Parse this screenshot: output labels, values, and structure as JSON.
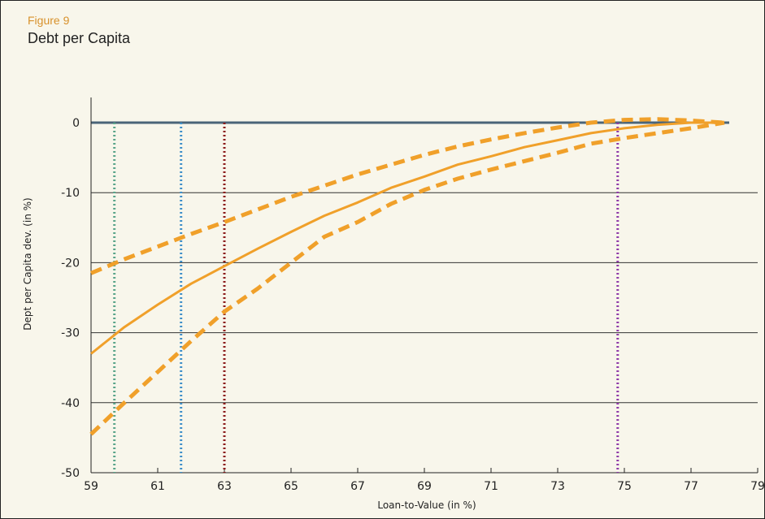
{
  "figure_label": "Figure 9",
  "figure_title": "Debt per Capita",
  "colors": {
    "background": "#f8f6eb",
    "series": "#f0a02a",
    "zero_line": "#4a6478",
    "grid": "#333333",
    "ref_green": "#5aa58a",
    "ref_blue": "#3f8fc9",
    "ref_darkred": "#8b1a1a",
    "ref_purple": "#8e3aa8"
  },
  "chart_data": {
    "type": "line",
    "title": "",
    "xlabel": "Loan-to-Value (in %)",
    "ylabel": "Dept per Capita dev. (in %)",
    "xlim": [
      59,
      79
    ],
    "ylim": [
      -50,
      2
    ],
    "xticks": [
      59,
      61,
      63,
      65,
      67,
      69,
      71,
      73,
      75,
      77,
      79
    ],
    "yticks": [
      0,
      -10,
      -20,
      -30,
      -40,
      -50
    ],
    "grid": "horizontal",
    "legend": "none",
    "series": [
      {
        "style": "solid",
        "x": [
          59,
          60,
          61,
          62,
          63,
          64,
          65,
          66,
          67,
          68,
          69,
          70,
          71,
          72,
          73,
          74,
          75,
          76,
          77,
          78
        ],
        "y": [
          -33,
          -29.2,
          -26,
          -23,
          -20.5,
          -18,
          -15.6,
          -13.3,
          -11.4,
          -9.3,
          -7.7,
          -6,
          -4.8,
          -3.5,
          -2.5,
          -1.5,
          -0.8,
          -0.3,
          0,
          0
        ]
      },
      {
        "style": "dashed",
        "x": [
          59,
          60,
          61,
          62,
          63,
          64,
          65,
          66,
          67,
          68,
          69,
          70,
          71,
          72,
          73,
          74,
          75,
          76,
          77,
          78
        ],
        "y": [
          -21.5,
          -19.5,
          -17.7,
          -15.9,
          -14.2,
          -12.4,
          -10.6,
          -9,
          -7.4,
          -6,
          -4.6,
          -3.4,
          -2.4,
          -1.5,
          -0.7,
          0,
          0.4,
          0.5,
          0.3,
          0
        ]
      },
      {
        "style": "dashed",
        "x": [
          59,
          60,
          61,
          62,
          63,
          64,
          65,
          66,
          67,
          68,
          69,
          70,
          71,
          72,
          73,
          74,
          75,
          76,
          77,
          78
        ],
        "y": [
          -44.5,
          -40,
          -35.6,
          -31.2,
          -27,
          -23.7,
          -20,
          -16.3,
          -14.2,
          -11.6,
          -9.6,
          -8,
          -6.7,
          -5.5,
          -4.3,
          -3,
          -2.2,
          -1.5,
          -0.8,
          0
        ]
      }
    ],
    "reference_lines": [
      {
        "x": 59.7,
        "color": "#5aa58a"
      },
      {
        "x": 61.7,
        "color": "#3f8fc9"
      },
      {
        "x": 63.0,
        "color": "#8b1a1a"
      },
      {
        "x": 74.8,
        "color": "#8e3aa8"
      }
    ]
  }
}
